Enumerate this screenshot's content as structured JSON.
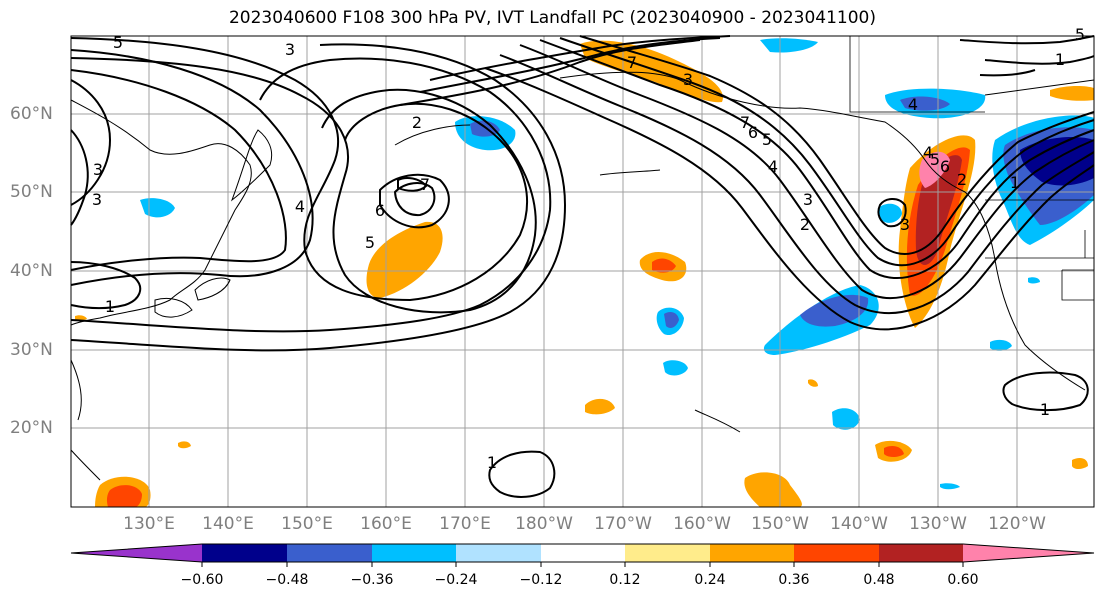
{
  "title": "2023040600 F108 300 hPa PV, IVT Landfall PC (2023040900 - 2023041100)",
  "map": {
    "lat_labels": [
      "60°N",
      "50°N",
      "40°N",
      "30°N",
      "20°N"
    ],
    "lon_labels": [
      "130°E",
      "140°E",
      "150°E",
      "160°E",
      "170°E",
      "180°W",
      "170°W",
      "160°W",
      "150°W",
      "140°W",
      "130°W",
      "120°W"
    ],
    "contour_labels": [
      "5",
      "3",
      "3",
      "4",
      "5",
      "6",
      "7",
      "2",
      "3",
      "1",
      "1",
      "2",
      "3",
      "4",
      "5",
      "6",
      "7",
      "7",
      "6",
      "5",
      "4",
      "3",
      "2",
      "1",
      "4",
      "5",
      "1",
      "1",
      "3"
    ]
  },
  "colorbar": {
    "ticks": [
      "−0.60",
      "−0.48",
      "−0.36",
      "−0.24",
      "−0.12",
      "0.12",
      "0.24",
      "0.36",
      "0.48",
      "0.60"
    ],
    "colors": [
      "#9933cc",
      "#00008b",
      "#3a5fcd",
      "#00bfff",
      "#b0e2ff",
      "#ffffff",
      "#ffec8b",
      "#ffa500",
      "#ff4500",
      "#b22222",
      "#ff82ab"
    ]
  }
}
